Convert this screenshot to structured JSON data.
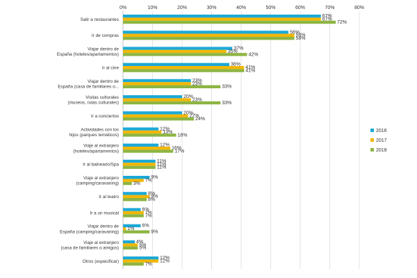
{
  "chart_data": {
    "type": "bar",
    "orientation": "horizontal",
    "title": "",
    "xlabel": "",
    "ylabel": "",
    "xlim": [
      0,
      80
    ],
    "x_ticks": [
      "0%",
      "10%",
      "20%",
      "30%",
      "40%",
      "50%",
      "60%",
      "70%",
      "80%"
    ],
    "grid": true,
    "legend_position": "right",
    "categories": [
      [
        "Salir a restaurantes"
      ],
      [
        "Ir de compras"
      ],
      [
        "Viajar dentro de",
        "España (hoteles/apartamentos)"
      ],
      [
        "Ir al cine"
      ],
      [
        "Viajar dentro de",
        "España (casa de familiares o..."
      ],
      [
        "Visitas culturales",
        "(museos, rutas culturales)"
      ],
      [
        "Ir a conciertos"
      ],
      [
        "Actividades con los",
        "hijos (parques temáticos)"
      ],
      [
        "Viaje al extranjero",
        "(hoteles/apartamentos)"
      ],
      [
        "Ir al balneario/Spa"
      ],
      [
        "Viaje al extranjero",
        "(camping/caravaning)"
      ],
      [
        "Ir al teatro"
      ],
      [
        "Ir a un musical"
      ],
      [
        "Viajar dentro de",
        "España (camping/caravaning)"
      ],
      [
        "Viaje al extranjero",
        "(casa de familiares o amigos)"
      ],
      [
        "Otros (especificar)"
      ]
    ],
    "series": [
      {
        "name": "2016",
        "color": "#1CA9D6",
        "values": [
          67,
          56,
          37,
          36,
          23,
          20,
          20,
          12,
          12,
          11,
          9,
          8,
          6,
          6,
          4,
          12
        ]
      },
      {
        "name": "2017",
        "color": "#F2B705",
        "values": [
          67,
          58,
          35,
          41,
          23,
          23,
          22,
          13,
          16,
          11,
          7,
          9,
          7,
          1,
          5,
          12
        ]
      },
      {
        "name": "2018",
        "color": "#8DB543",
        "values": [
          72,
          58,
          42,
          41,
          33,
          33,
          24,
          18,
          17,
          11,
          3,
          8,
          7,
          9,
          5,
          7
        ]
      }
    ],
    "value_suffix": "%"
  }
}
